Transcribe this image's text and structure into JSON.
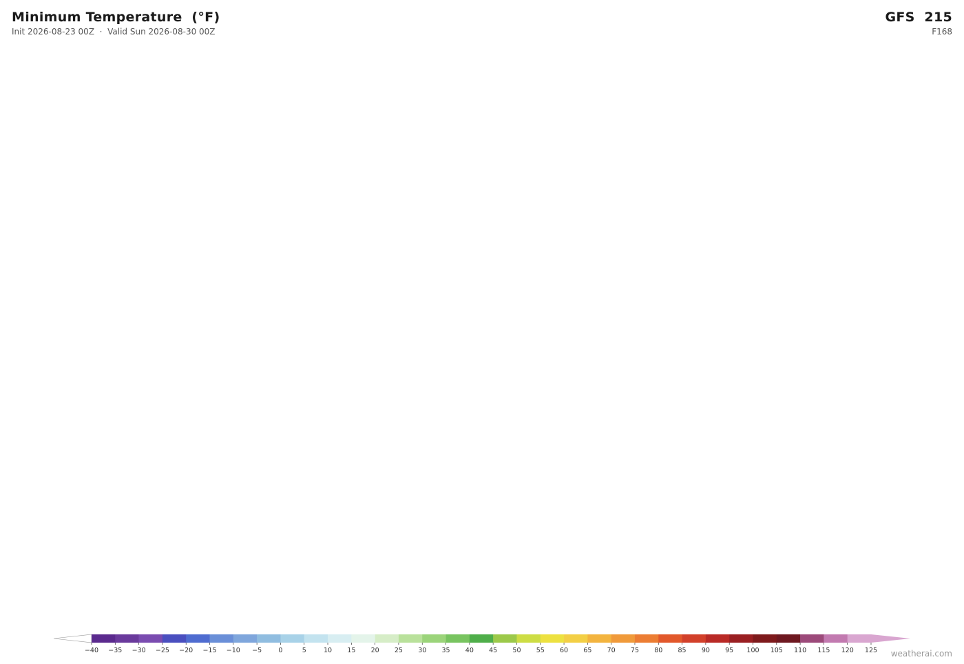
{
  "header": {
    "title": "Minimum Temperature  (°F)",
    "subtitle": "Init 2026-08-23 00Z  ·  Valid Sun 2026-08-30 00Z",
    "model": "GFS  215",
    "forecast_hour": "F168"
  },
  "colorbar": {
    "under_color": "#ffffff",
    "over_color": "#d9a6d0",
    "colors": [
      "#5b2a8e",
      "#6a3a9c",
      "#7a4cb0",
      "#4a4fbf",
      "#4f6cd0",
      "#6a8fd8",
      "#7fa6dc",
      "#90bde0",
      "#a8d2e8",
      "#c3e3ef",
      "#d8eef2",
      "#e4f4ea",
      "#d6edc7",
      "#b9e19b",
      "#9bd47a",
      "#78c460",
      "#4fae4a",
      "#9cc94a",
      "#cddd44",
      "#ede140",
      "#f3cf45",
      "#f3b43f",
      "#f09a3a",
      "#ec7d33",
      "#e2582b",
      "#d2402a",
      "#b92a26",
      "#9a1f22",
      "#7e1a1c",
      "#6e1820",
      "#9c4a7a",
      "#c27ab0",
      "#d9a6d0"
    ],
    "ticks": [
      {
        "value": -40,
        "label": "−40"
      },
      {
        "value": -35,
        "label": "−35"
      },
      {
        "value": -30,
        "label": "−30"
      },
      {
        "value": -25,
        "label": "−25"
      },
      {
        "value": -20,
        "label": "−20"
      },
      {
        "value": -15,
        "label": "−15"
      },
      {
        "value": -10,
        "label": "−10"
      },
      {
        "value": -5,
        "label": "−5"
      },
      0,
      5,
      10,
      15,
      20,
      25,
      30,
      35,
      40,
      45,
      50,
      55,
      60,
      65,
      70,
      75,
      80,
      85,
      90,
      95,
      100,
      105,
      110,
      115,
      120,
      125
    ]
  },
  "watermark": "weatherai.com"
}
